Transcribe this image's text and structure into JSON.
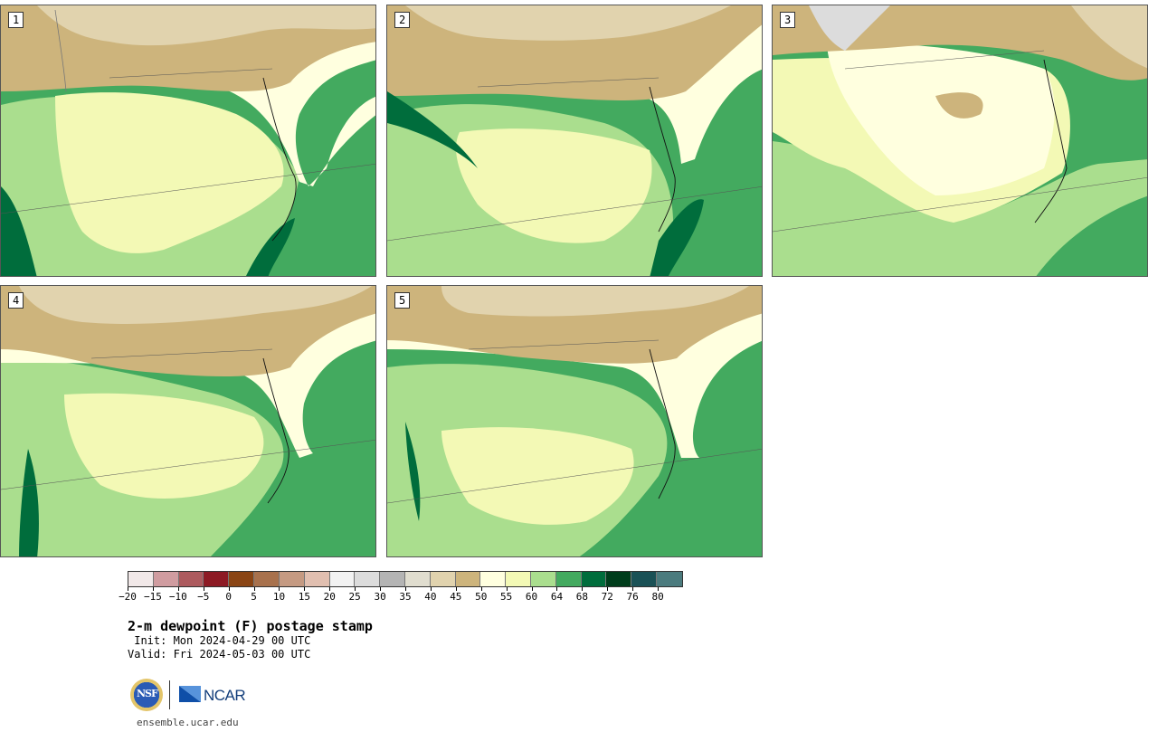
{
  "panels": [
    {
      "label": "1"
    },
    {
      "label": "2"
    },
    {
      "label": "3"
    },
    {
      "label": "4"
    },
    {
      "label": "5"
    }
  ],
  "colorbar": {
    "colors": [
      "#f1e8e8",
      "#d09ca0",
      "#ad5a5e",
      "#8d1a24",
      "#8a4514",
      "#a8714c",
      "#c59a82",
      "#e1bfb0",
      "#f2f2f2",
      "#dcdcdc",
      "#b4b4b4",
      "#e0ddcf",
      "#e1d3ae",
      "#cdb47c",
      "#ffffdf",
      "#f3f9b5",
      "#aade8e",
      "#43aa5f",
      "#006d3c",
      "#003d1c",
      "#1a5156",
      "#4b7b7e"
    ],
    "ticks": [
      "−20",
      "−15",
      "−10",
      "−5",
      "0",
      "5",
      "10",
      "15",
      "20",
      "25",
      "30",
      "35",
      "40",
      "45",
      "50",
      "55",
      "60",
      "64",
      "68",
      "72",
      "76",
      "80"
    ]
  },
  "title": "2-m dewpoint (F) postage stamp",
  "init": " Init: Mon 2024-04-29 00 UTC",
  "valid": "Valid: Fri 2024-05-03 00 UTC",
  "logos": {
    "nsf": "NSF",
    "ncar": "NCAR"
  },
  "site": "ensemble.ucar.edu"
}
